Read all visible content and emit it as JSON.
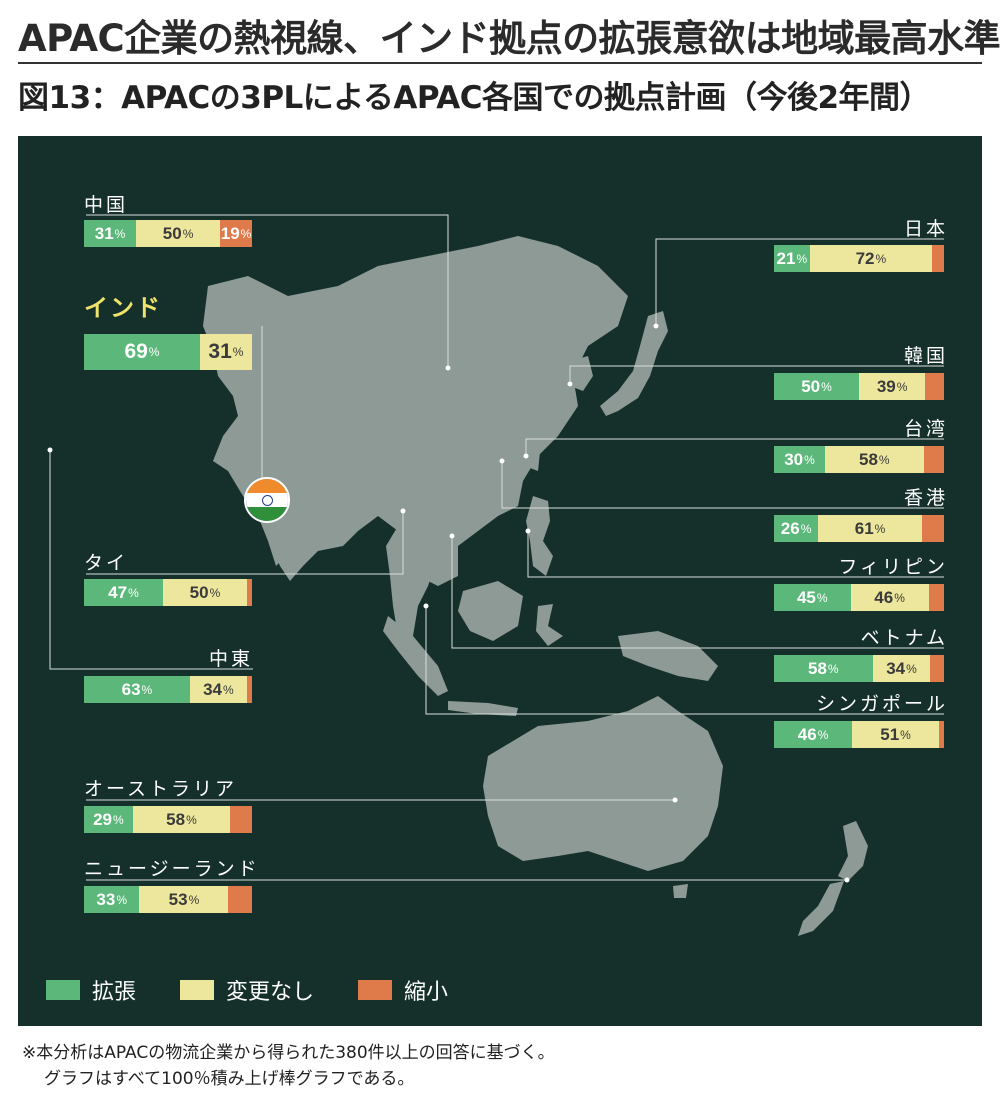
{
  "headline": "APAC企業の熱視線、インド拠点の拡張意欲は地域最高水準",
  "chart_data": {
    "type": "bar",
    "title": "図13：APACの3PLによるAPAC各国での拠点計画（今後2年間）",
    "stacked": true,
    "percent_suffix": "%",
    "series_names": [
      "拡張",
      "変更なし",
      "縮小"
    ],
    "colors": {
      "expand": "#5cb87a",
      "same": "#ede79e",
      "shrink": "#df7a4a",
      "map_bg": "#15302b",
      "land": "#8e9a96"
    },
    "countries": [
      {
        "id": "china",
        "label": "中国",
        "values": [
          31,
          50,
          19
        ],
        "shown": [
          "31",
          "50",
          "19"
        ]
      },
      {
        "id": "india",
        "label": "インド",
        "values": [
          69,
          31,
          0
        ],
        "shown": [
          "69",
          "31",
          ""
        ]
      },
      {
        "id": "thailand",
        "label": "タイ",
        "values": [
          47,
          50,
          3
        ],
        "shown": [
          "47",
          "50",
          ""
        ]
      },
      {
        "id": "middle-east",
        "label": "中東",
        "values": [
          63,
          34,
          3
        ],
        "shown": [
          "63",
          "34",
          ""
        ]
      },
      {
        "id": "australia",
        "label": "オーストラリア",
        "values": [
          29,
          58,
          13
        ],
        "shown": [
          "29",
          "58",
          ""
        ]
      },
      {
        "id": "new-zealand",
        "label": "ニュージーランド",
        "values": [
          33,
          53,
          14
        ],
        "shown": [
          "33",
          "53",
          ""
        ]
      },
      {
        "id": "japan",
        "label": "日本",
        "values": [
          21,
          72,
          7
        ],
        "shown": [
          "21",
          "72",
          ""
        ]
      },
      {
        "id": "korea",
        "label": "韓国",
        "values": [
          50,
          39,
          11
        ],
        "shown": [
          "50",
          "39",
          ""
        ]
      },
      {
        "id": "taiwan",
        "label": "台湾",
        "values": [
          30,
          58,
          12
        ],
        "shown": [
          "30",
          "58",
          ""
        ]
      },
      {
        "id": "hong-kong",
        "label": "香港",
        "values": [
          26,
          61,
          13
        ],
        "shown": [
          "26",
          "61",
          ""
        ]
      },
      {
        "id": "philippines",
        "label": "フィリピン",
        "values": [
          45,
          46,
          9
        ],
        "shown": [
          "45",
          "46",
          ""
        ]
      },
      {
        "id": "vietnam",
        "label": "ベトナム",
        "values": [
          58,
          34,
          8
        ],
        "shown": [
          "58",
          "34",
          ""
        ]
      },
      {
        "id": "singapore",
        "label": "シンガポール",
        "values": [
          46,
          51,
          3
        ],
        "shown": [
          "46",
          "51",
          ""
        ]
      }
    ]
  },
  "legend": {
    "expand": "拡張",
    "same": "変更なし",
    "shrink": "縮小"
  },
  "footnote": {
    "line1": "※本分析はAPACの物流企業から得られた380件以上の回答に基づく。",
    "line2": "グラフはすべて100％積み上げ棒グラフである。"
  }
}
